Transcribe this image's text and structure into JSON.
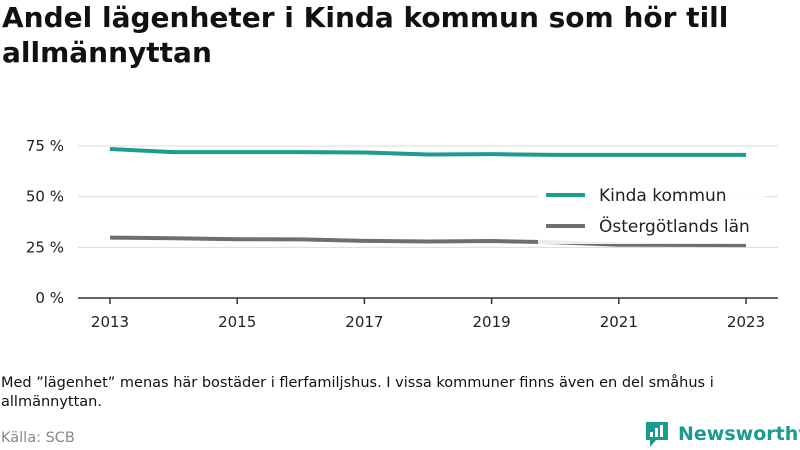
{
  "chart_data": {
    "type": "line",
    "title": "Andel lägenheter i Kinda kommun som hör till allmännyttan",
    "x": [
      2013,
      2014,
      2015,
      2016,
      2017,
      2018,
      2019,
      2020,
      2021,
      2022,
      2023
    ],
    "x_ticks": [
      "2013",
      "2015",
      "2017",
      "2019",
      "2021",
      "2023"
    ],
    "y_ticks": [
      "0 %",
      "25 %",
      "50 %",
      "75 %"
    ],
    "ylim": [
      0,
      75
    ],
    "grid": "horizontal",
    "legend_position": "right",
    "series": [
      {
        "name": "Kinda kommun",
        "color": "#1a9e8f",
        "values": [
          73.5,
          72,
          72,
          72,
          71.8,
          70.8,
          71,
          70.6,
          70.6,
          70.6,
          70.6
        ]
      },
      {
        "name": "Östergötlands län",
        "color": "#6e6e6e",
        "values": [
          29.8,
          29.5,
          29,
          28.9,
          28.2,
          27.9,
          28.1,
          27.5,
          26.3,
          26.2,
          26.1
        ]
      }
    ]
  },
  "note": "Med ”lägenhet” menas här bostäder i flerfamiljshus. I vissa kommuner finns även en del småhus i allmännyttan.",
  "source": "Källa: SCB",
  "brand": {
    "name": "Newsworthy",
    "color": "#199c8f",
    "icon": "newsworthy-logo-icon"
  }
}
